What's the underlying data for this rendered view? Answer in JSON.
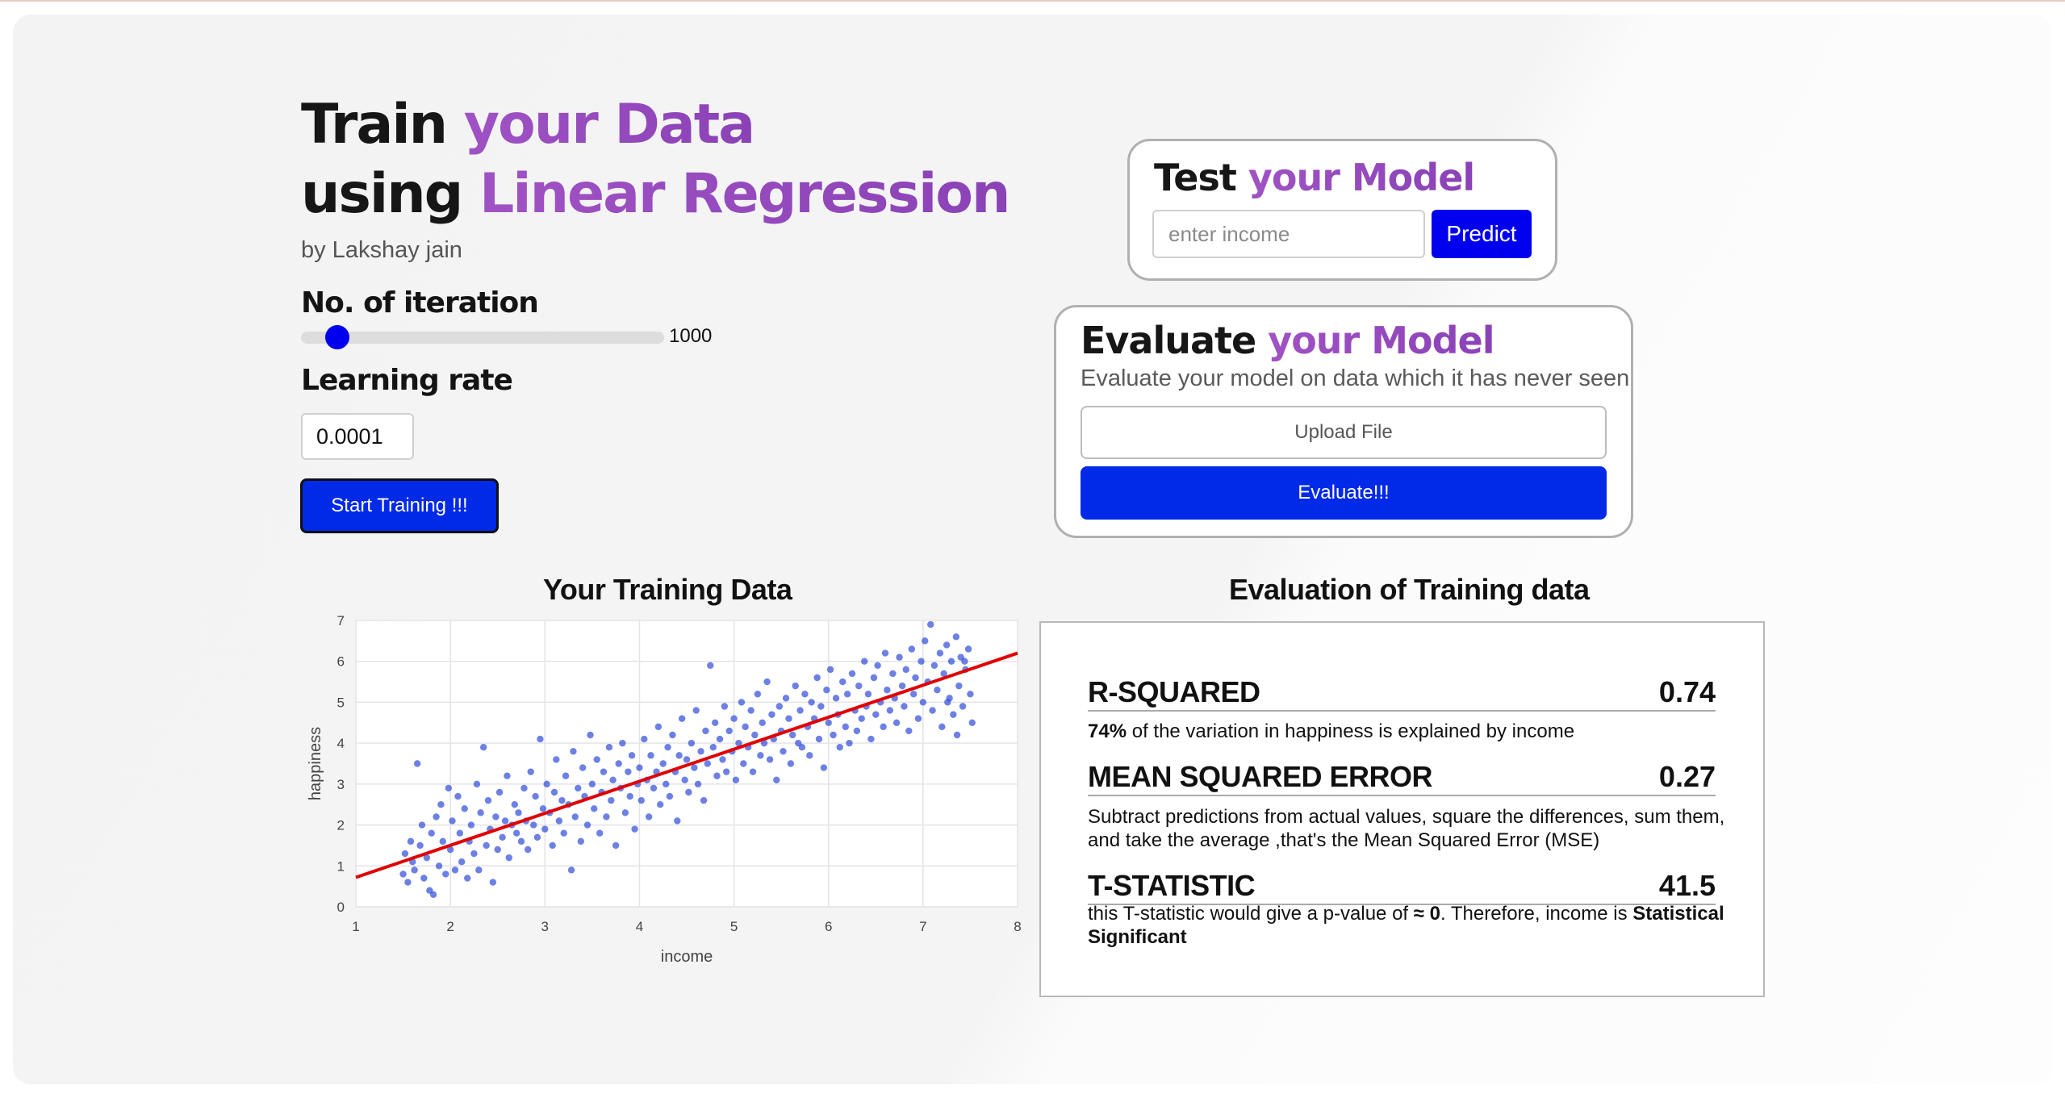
{
  "header": {
    "title_line1_plain": "Train ",
    "title_line1_accent": "your Data",
    "title_line2_plain": "using ",
    "title_line2_accent": "Linear Regression",
    "author": "by Lakshay jain"
  },
  "controls": {
    "iteration_label": "No. of iteration",
    "iteration_value": "1000",
    "iteration_fraction": 0.1,
    "learning_rate_label": "Learning rate",
    "learning_rate_value": "0.0001",
    "start_button": "Start Training !!!"
  },
  "test_panel": {
    "title_plain": "Test ",
    "title_accent": "your Model",
    "input_placeholder": "enter income",
    "predict_button": "Predict"
  },
  "evaluate_panel": {
    "title_plain": "Evaluate ",
    "title_accent": "your Model",
    "subtitle": "Evaluate your model on data which it has never seen",
    "upload_button": "Upload File",
    "evaluate_button": "Evaluate!!!"
  },
  "chart_section": {
    "title": "Your Training Data"
  },
  "evaluation": {
    "title": "Evaluation of Training data",
    "r_squared": {
      "name": "R-SQUARED",
      "value": "0.74",
      "desc_bold": "74%",
      "desc_rest": " of the variation in happiness is explained by income"
    },
    "mse": {
      "name": "MEAN SQUARED ERROR",
      "value": "0.27",
      "desc": "Subtract predictions from actual values, square the differences, sum them, and take the average ,that's the Mean Squared Error (MSE)"
    },
    "t_stat": {
      "name": "T-STATISTIC",
      "value": "41.5",
      "desc_a": "this T-statistic would give a p-value of ",
      "desc_b": "≈ 0",
      "desc_c": ". Therefore, income is ",
      "desc_d": "Statistical Significant"
    }
  },
  "colors": {
    "accent_purple": "#9a4cc0",
    "primary_blue": "#0029e8",
    "point_blue": "#2f4ad8",
    "regression_red": "#e00000"
  },
  "chart_data": {
    "type": "scatter",
    "title": "",
    "xlabel": "income",
    "ylabel": "happiness",
    "xlim": [
      1,
      8
    ],
    "ylim": [
      0,
      7
    ],
    "x_ticks": [
      "1",
      "2",
      "3",
      "4",
      "5",
      "6",
      "7",
      "8"
    ],
    "y_ticks": [
      "0",
      "1",
      "2",
      "3",
      "4",
      "5",
      "6",
      "7"
    ],
    "grid": true,
    "regression_line": {
      "x": [
        1,
        8
      ],
      "y": [
        0.72,
        6.2
      ]
    },
    "series": [
      {
        "points": [
          [
            1.5,
            0.8
          ],
          [
            1.52,
            1.3
          ],
          [
            1.55,
            0.6
          ],
          [
            1.58,
            1.6
          ],
          [
            1.6,
            1.1
          ],
          [
            1.62,
            0.9
          ],
          [
            1.65,
            3.5
          ],
          [
            1.68,
            1.5
          ],
          [
            1.7,
            2.0
          ],
          [
            1.72,
            0.7
          ],
          [
            1.75,
            1.2
          ],
          [
            1.78,
            0.4
          ],
          [
            1.8,
            1.8
          ],
          [
            1.82,
            0.3
          ],
          [
            1.85,
            2.2
          ],
          [
            1.88,
            1.0
          ],
          [
            1.9,
            2.5
          ],
          [
            1.92,
            1.6
          ],
          [
            1.95,
            0.8
          ],
          [
            1.98,
            2.9
          ],
          [
            2.0,
            1.4
          ],
          [
            2.02,
            2.1
          ],
          [
            2.05,
            0.9
          ],
          [
            2.08,
            2.7
          ],
          [
            2.1,
            1.8
          ],
          [
            2.12,
            1.1
          ],
          [
            2.15,
            2.4
          ],
          [
            2.18,
            0.7
          ],
          [
            2.2,
            1.6
          ],
          [
            2.22,
            2.0
          ],
          [
            2.25,
            1.3
          ],
          [
            2.28,
            3.0
          ],
          [
            2.3,
            0.9
          ],
          [
            2.32,
            2.3
          ],
          [
            2.35,
            3.9
          ],
          [
            2.38,
            1.5
          ],
          [
            2.4,
            2.6
          ],
          [
            2.42,
            1.9
          ],
          [
            2.45,
            0.6
          ],
          [
            2.48,
            2.2
          ],
          [
            2.5,
            1.4
          ],
          [
            2.52,
            2.8
          ],
          [
            2.55,
            1.7
          ],
          [
            2.58,
            2.1
          ],
          [
            2.6,
            3.2
          ],
          [
            2.62,
            1.2
          ],
          [
            2.65,
            2.0
          ],
          [
            2.68,
            2.5
          ],
          [
            2.7,
            1.8
          ],
          [
            2.72,
            2.3
          ],
          [
            2.75,
            1.6
          ],
          [
            2.78,
            2.9
          ],
          [
            2.8,
            2.1
          ],
          [
            2.82,
            1.4
          ],
          [
            2.85,
            3.3
          ],
          [
            2.88,
            2.0
          ],
          [
            2.9,
            2.7
          ],
          [
            2.92,
            1.7
          ],
          [
            2.95,
            4.1
          ],
          [
            2.98,
            2.4
          ],
          [
            3.0,
            1.9
          ],
          [
            3.02,
            3.0
          ],
          [
            3.05,
            2.3
          ],
          [
            3.08,
            1.5
          ],
          [
            3.1,
            2.8
          ],
          [
            3.12,
            3.6
          ],
          [
            3.15,
            2.1
          ],
          [
            3.18,
            2.6
          ],
          [
            3.2,
            1.8
          ],
          [
            3.22,
            3.2
          ],
          [
            3.25,
            2.5
          ],
          [
            3.28,
            0.9
          ],
          [
            3.3,
            3.8
          ],
          [
            3.32,
            2.2
          ],
          [
            3.35,
            2.9
          ],
          [
            3.38,
            1.6
          ],
          [
            3.4,
            3.4
          ],
          [
            3.42,
            2.7
          ],
          [
            3.45,
            2.0
          ],
          [
            3.48,
            4.2
          ],
          [
            3.5,
            3.0
          ],
          [
            3.52,
            2.4
          ],
          [
            3.55,
            3.6
          ],
          [
            3.58,
            1.8
          ],
          [
            3.6,
            2.8
          ],
          [
            3.62,
            3.3
          ],
          [
            3.65,
            2.2
          ],
          [
            3.68,
            3.9
          ],
          [
            3.7,
            2.6
          ],
          [
            3.72,
            3.1
          ],
          [
            3.75,
            1.5
          ],
          [
            3.78,
            3.5
          ],
          [
            3.8,
            2.9
          ],
          [
            3.82,
            4.0
          ],
          [
            3.85,
            2.3
          ],
          [
            3.88,
            3.3
          ],
          [
            3.9,
            2.7
          ],
          [
            3.92,
            3.7
          ],
          [
            3.95,
            1.9
          ],
          [
            3.98,
            3.0
          ],
          [
            4.0,
            3.4
          ],
          [
            4.02,
            2.6
          ],
          [
            4.05,
            4.1
          ],
          [
            4.08,
            3.1
          ],
          [
            4.1,
            2.2
          ],
          [
            4.12,
            3.7
          ],
          [
            4.15,
            2.9
          ],
          [
            4.18,
            3.3
          ],
          [
            4.2,
            4.4
          ],
          [
            4.22,
            2.5
          ],
          [
            4.25,
            3.5
          ],
          [
            4.28,
            3.0
          ],
          [
            4.3,
            3.9
          ],
          [
            4.32,
            2.7
          ],
          [
            4.35,
            4.2
          ],
          [
            4.38,
            3.3
          ],
          [
            4.4,
            2.1
          ],
          [
            4.42,
            3.7
          ],
          [
            4.45,
            4.6
          ],
          [
            4.48,
            3.1
          ],
          [
            4.5,
            3.6
          ],
          [
            4.52,
            2.8
          ],
          [
            4.55,
            4.0
          ],
          [
            4.58,
            3.4
          ],
          [
            4.6,
            4.8
          ],
          [
            4.62,
            3.0
          ],
          [
            4.65,
            3.8
          ],
          [
            4.68,
            2.6
          ],
          [
            4.7,
            4.3
          ],
          [
            4.72,
            3.5
          ],
          [
            4.75,
            5.9
          ],
          [
            4.78,
            3.9
          ],
          [
            4.8,
            4.5
          ],
          [
            4.82,
            3.2
          ],
          [
            4.85,
            4.1
          ],
          [
            4.88,
            3.6
          ],
          [
            4.9,
            4.9
          ],
          [
            4.92,
            3.3
          ],
          [
            4.95,
            4.3
          ],
          [
            4.98,
            3.8
          ],
          [
            5.0,
            4.6
          ],
          [
            5.02,
            3.1
          ],
          [
            5.05,
            4.0
          ],
          [
            5.08,
            5.0
          ],
          [
            5.1,
            3.5
          ],
          [
            5.12,
            4.4
          ],
          [
            5.15,
            3.9
          ],
          [
            5.18,
            4.8
          ],
          [
            5.2,
            3.3
          ],
          [
            5.22,
            4.2
          ],
          [
            5.25,
            5.2
          ],
          [
            5.28,
            3.7
          ],
          [
            5.3,
            4.5
          ],
          [
            5.32,
            4.0
          ],
          [
            5.35,
            5.5
          ],
          [
            5.38,
            3.6
          ],
          [
            5.4,
            4.7
          ],
          [
            5.42,
            4.1
          ],
          [
            5.45,
            3.1
          ],
          [
            5.48,
            4.9
          ],
          [
            5.5,
            4.3
          ],
          [
            5.52,
            3.8
          ],
          [
            5.55,
            5.1
          ],
          [
            5.58,
            4.6
          ],
          [
            5.6,
            3.5
          ],
          [
            5.62,
            4.2
          ],
          [
            5.65,
            5.4
          ],
          [
            5.68,
            4.0
          ],
          [
            5.7,
            4.8
          ],
          [
            5.72,
            3.9
          ],
          [
            5.75,
            5.2
          ],
          [
            5.78,
            4.4
          ],
          [
            5.8,
            3.7
          ],
          [
            5.82,
            5.0
          ],
          [
            5.85,
            4.6
          ],
          [
            5.88,
            5.6
          ],
          [
            5.9,
            4.1
          ],
          [
            5.92,
            4.9
          ],
          [
            5.95,
            3.4
          ],
          [
            5.98,
            5.3
          ],
          [
            6.0,
            4.5
          ],
          [
            6.02,
            5.8
          ],
          [
            6.05,
            4.2
          ],
          [
            6.08,
            5.1
          ],
          [
            6.1,
            4.7
          ],
          [
            6.12,
            3.9
          ],
          [
            6.15,
            5.5
          ],
          [
            6.18,
            4.4
          ],
          [
            6.2,
            5.2
          ],
          [
            6.22,
            4.0
          ],
          [
            6.25,
            5.7
          ],
          [
            6.28,
            4.8
          ],
          [
            6.3,
            4.3
          ],
          [
            6.32,
            5.4
          ],
          [
            6.35,
            4.6
          ],
          [
            6.38,
            6.0
          ],
          [
            6.4,
            4.9
          ],
          [
            6.42,
            5.2
          ],
          [
            6.45,
            4.1
          ],
          [
            6.48,
            5.6
          ],
          [
            6.5,
            4.7
          ],
          [
            6.52,
            5.9
          ],
          [
            6.55,
            5.0
          ],
          [
            6.58,
            4.4
          ],
          [
            6.6,
            6.2
          ],
          [
            6.62,
            5.3
          ],
          [
            6.65,
            4.8
          ],
          [
            6.68,
            5.7
          ],
          [
            6.7,
            5.1
          ],
          [
            6.72,
            4.5
          ],
          [
            6.75,
            6.1
          ],
          [
            6.78,
            5.4
          ],
          [
            6.8,
            4.9
          ],
          [
            6.82,
            5.8
          ],
          [
            6.85,
            4.3
          ],
          [
            6.88,
            6.3
          ],
          [
            6.9,
            5.2
          ],
          [
            6.92,
            5.6
          ],
          [
            6.95,
            4.6
          ],
          [
            6.98,
            6.0
          ],
          [
            7.0,
            5.0
          ],
          [
            7.02,
            6.5
          ],
          [
            7.05,
            5.5
          ],
          [
            7.08,
            6.9
          ],
          [
            7.1,
            4.8
          ],
          [
            7.12,
            5.9
          ],
          [
            7.15,
            5.3
          ],
          [
            7.18,
            6.2
          ],
          [
            7.2,
            4.4
          ],
          [
            7.22,
            5.7
          ],
          [
            7.25,
            6.4
          ],
          [
            7.28,
            5.1
          ],
          [
            7.3,
            6.0
          ],
          [
            7.32,
            4.7
          ],
          [
            7.35,
            6.6
          ],
          [
            7.38,
            5.4
          ],
          [
            7.4,
            6.1
          ],
          [
            7.42,
            4.9
          ],
          [
            7.45,
            5.8
          ],
          [
            7.48,
            6.3
          ],
          [
            7.5,
            5.2
          ],
          [
            7.52,
            4.5
          ],
          [
            7.44,
            6.0
          ],
          [
            7.36,
            4.2
          ],
          [
            7.26,
            5.0
          ]
        ]
      }
    ]
  }
}
